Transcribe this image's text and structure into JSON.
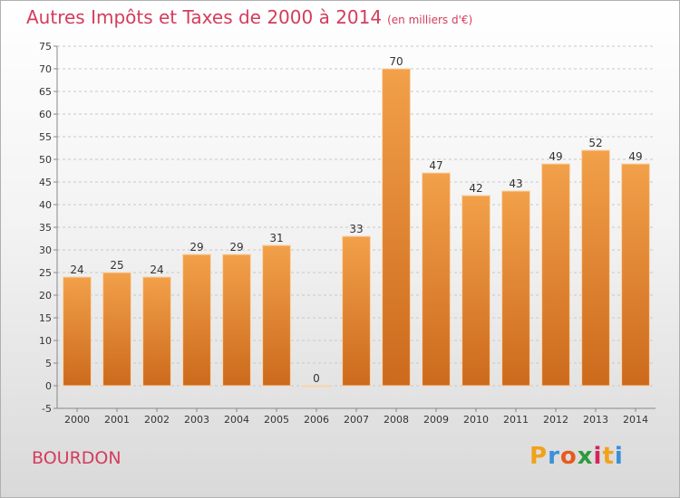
{
  "header": {
    "title": "Autres Impôts et Taxes de 2000 à 2014",
    "subtitle": "(en milliers d'€)"
  },
  "footer": {
    "place": "BOURDON",
    "logo_letters": [
      "P",
      "r",
      "o",
      "x",
      "i",
      "t",
      "i"
    ],
    "logo_colors": [
      "#f1a21b",
      "#3a8fd8",
      "#e85a1e",
      "#2f9a3e",
      "#d4245c",
      "#f1a21b",
      "#3a8fd8"
    ]
  },
  "chart_data": {
    "type": "bar",
    "title": "Autres Impôts et Taxes de 2000 à 2014",
    "subtitle": "(en milliers d'€)",
    "categories": [
      "2000",
      "2001",
      "2002",
      "2003",
      "2004",
      "2005",
      "2006",
      "2007",
      "2008",
      "2009",
      "2010",
      "2011",
      "2012",
      "2013",
      "2014"
    ],
    "values": [
      24,
      25,
      24,
      29,
      29,
      31,
      0,
      33,
      70,
      47,
      42,
      43,
      49,
      52,
      49
    ],
    "data_labels": [
      "24",
      "25",
      "24",
      "29",
      "29",
      "31",
      "0",
      "33",
      "70",
      "47",
      "42",
      "43",
      "49",
      "52",
      "49"
    ],
    "ylim": [
      -5,
      75
    ],
    "yticks": [
      -5,
      0,
      5,
      10,
      15,
      20,
      25,
      30,
      35,
      40,
      45,
      50,
      55,
      60,
      65,
      70,
      75
    ],
    "ytick_labels": [
      "-5",
      "0",
      "5",
      "10",
      "15",
      "20",
      "25",
      "30",
      "35",
      "40",
      "45",
      "50",
      "55",
      "60",
      "65",
      "70",
      "75"
    ],
    "grid": "horizontal-dashed",
    "bar_color": "#f2a04a",
    "bar_color_dark": "#cc6a1c",
    "label_color": "#333333"
  }
}
